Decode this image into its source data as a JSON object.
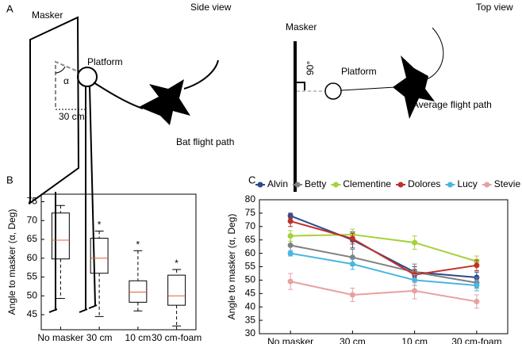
{
  "panel_a": {
    "label": "A",
    "side_view": {
      "title": "Side view",
      "masker": "Masker",
      "platform": "Platform",
      "angle": "α",
      "distance": "30 cm",
      "path": "Bat flight path"
    },
    "top_view": {
      "title": "Top view",
      "masker": "Masker",
      "angle": "90°",
      "platform": "Platform",
      "path": "Average flight path"
    }
  },
  "chart_data": [
    {
      "type": "box",
      "label": "B",
      "ylabel": "Angle to masker (α, Deg)",
      "categories": [
        "No masker",
        "30 cm",
        "10 cm",
        "30 cm-foam"
      ],
      "boxes": [
        {
          "min": 49.3,
          "q1": 59.8,
          "median": 64.8,
          "q3": 72,
          "max": 74
        },
        {
          "min": 44.5,
          "q1": 56,
          "median": 60,
          "q3": 65.3,
          "max": 67.2
        },
        {
          "min": 46,
          "q1": 48.3,
          "median": 51,
          "q3": 54,
          "max": 62
        },
        {
          "min": 42,
          "q1": 47.5,
          "median": 50,
          "q3": 55.5,
          "max": 57
        }
      ],
      "significance": [
        null,
        "*",
        "*",
        "*"
      ],
      "box_color": "#000000",
      "median_color": "#e0603a",
      "ylim": [
        41,
        77
      ],
      "yticks": [
        45,
        50,
        55,
        60,
        65,
        70,
        75
      ]
    },
    {
      "type": "line",
      "label": "C",
      "ylabel": "Angle to masker (α, Deg)",
      "categories": [
        "No masker",
        "30 cm",
        "10 cm",
        "30 cm-foam"
      ],
      "series": [
        {
          "name": "Alvin",
          "color": "#2a4a8c",
          "values": [
            74,
            65,
            53,
            51
          ],
          "errors": [
            1,
            3,
            2,
            2
          ]
        },
        {
          "name": "Betty",
          "color": "#808080",
          "values": [
            63,
            58.5,
            53,
            49
          ],
          "errors": [
            3,
            3,
            3,
            2
          ]
        },
        {
          "name": "Clementine",
          "color": "#a6d13c",
          "values": [
            66.5,
            67,
            64,
            57
          ],
          "errors": [
            2,
            2,
            2.5,
            2
          ]
        },
        {
          "name": "Dolores",
          "color": "#c0302a",
          "values": [
            72,
            65.5,
            52,
            55.5
          ],
          "errors": [
            2,
            2,
            2,
            2
          ]
        },
        {
          "name": "Lucy",
          "color": "#4ab6e0",
          "values": [
            60,
            56,
            50,
            48
          ],
          "errors": [
            1,
            2,
            2,
            2
          ]
        },
        {
          "name": "Stevie",
          "color": "#e8a0a0",
          "values": [
            49.5,
            44.5,
            46,
            42
          ],
          "errors": [
            3,
            2.5,
            3,
            2.5
          ]
        }
      ],
      "ylim": [
        30,
        80
      ],
      "yticks": [
        30,
        35,
        40,
        45,
        50,
        55,
        60,
        65,
        70,
        75,
        80
      ],
      "legend": "top"
    }
  ]
}
